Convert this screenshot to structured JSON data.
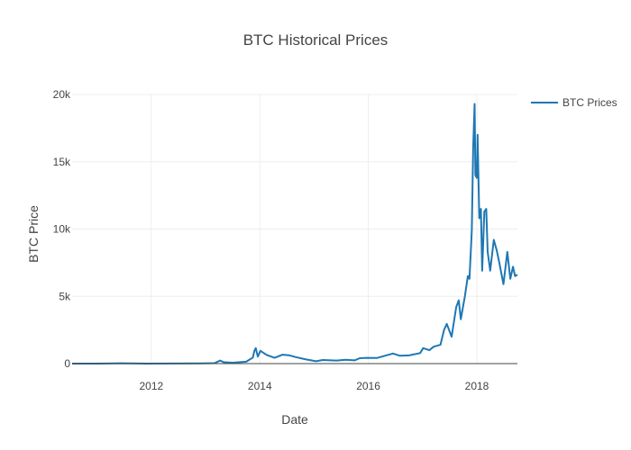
{
  "chart_data": {
    "type": "line",
    "title": "BTC Historical Prices",
    "xlabel": "Date",
    "ylabel": "BTC Price",
    "xlim": [
      "2010-07-17",
      "2018-10-01"
    ],
    "ylim": [
      0,
      20000
    ],
    "x_ticks": [
      "2012",
      "2014",
      "2016",
      "2018"
    ],
    "y_ticks": [
      "0",
      "5k",
      "10k",
      "15k",
      "20k"
    ],
    "grid": true,
    "legend_position": "top-right",
    "series": [
      {
        "name": "BTC Prices",
        "color": "#1f77b4",
        "x": [
          "2010-07-17",
          "2011-01-01",
          "2011-06-08",
          "2011-12-01",
          "2012-06-01",
          "2012-12-01",
          "2013-03-01",
          "2013-04-10",
          "2013-05-01",
          "2013-07-01",
          "2013-10-01",
          "2013-11-15",
          "2013-11-25",
          "2013-12-04",
          "2013-12-18",
          "2014-01-05",
          "2014-02-15",
          "2014-04-10",
          "2014-06-03",
          "2014-07-15",
          "2014-09-01",
          "2014-11-01",
          "2015-01-14",
          "2015-03-01",
          "2015-06-01",
          "2015-08-01",
          "2015-10-01",
          "2015-11-04",
          "2015-12-20",
          "2016-03-01",
          "2016-06-15",
          "2016-08-01",
          "2016-10-01",
          "2016-12-15",
          "2017-01-04",
          "2017-02-15",
          "2017-03-15",
          "2017-05-01",
          "2017-05-25",
          "2017-06-12",
          "2017-07-15",
          "2017-08-15",
          "2017-09-01",
          "2017-09-15",
          "2017-10-12",
          "2017-11-01",
          "2017-11-12",
          "2017-11-28",
          "2017-12-07",
          "2017-12-17",
          "2017-12-22",
          "2018-01-01",
          "2018-01-06",
          "2018-01-17",
          "2018-01-28",
          "2018-02-06",
          "2018-02-20",
          "2018-03-05",
          "2018-03-15",
          "2018-04-01",
          "2018-04-25",
          "2018-05-15",
          "2018-06-01",
          "2018-06-29",
          "2018-07-25",
          "2018-08-14",
          "2018-09-01",
          "2018-09-15",
          "2018-10-01"
        ],
        "values": [
          0.05,
          0.3,
          30,
          3,
          5,
          13,
          34,
          230,
          110,
          70,
          140,
          450,
          950,
          1150,
          520,
          950,
          650,
          430,
          660,
          620,
          480,
          330,
          175,
          270,
          225,
          280,
          240,
          400,
          430,
          420,
          750,
          580,
          610,
          780,
          1150,
          1000,
          1250,
          1400,
          2500,
          2950,
          2000,
          4200,
          4700,
          3300,
          5000,
          6500,
          6300,
          9900,
          16000,
          19300,
          14000,
          13800,
          17000,
          10800,
          11500,
          6900,
          11300,
          11500,
          8300,
          6900,
          9200,
          8400,
          7500,
          5900,
          8300,
          6300,
          7200,
          6500,
          6600
        ]
      }
    ]
  }
}
